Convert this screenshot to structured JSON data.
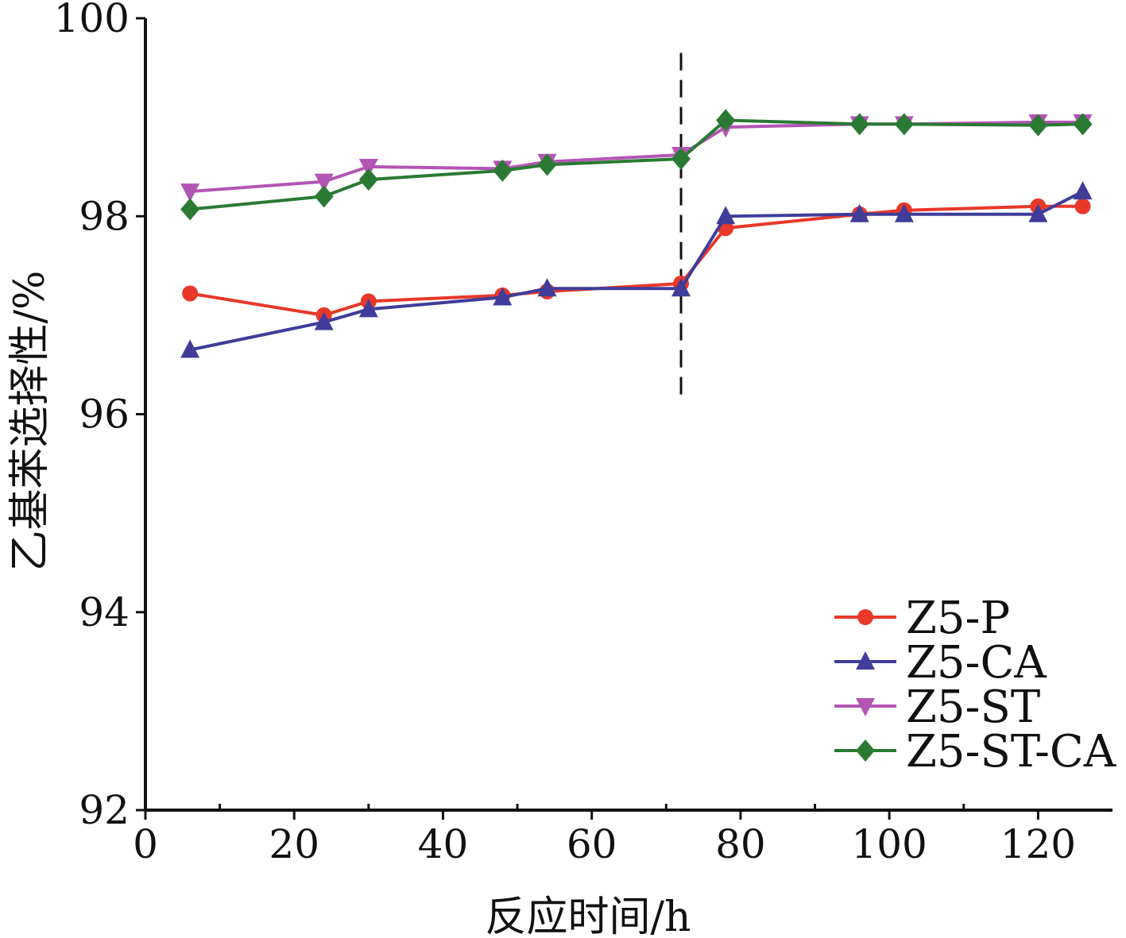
{
  "chart_data": {
    "type": "line",
    "title": "",
    "xlabel": "反应时间/h",
    "ylabel": "乙基苯选择性/%",
    "xlim": [
      0,
      130
    ],
    "ylim": [
      92,
      100
    ],
    "xticks": [
      0,
      20,
      40,
      60,
      80,
      100,
      120
    ],
    "yticks": [
      92,
      94,
      96,
      98,
      100
    ],
    "x_tick_labels": [
      "0",
      "20",
      "40",
      "60",
      "80",
      "100",
      "120"
    ],
    "y_tick_labels": [
      "92",
      "94",
      "96",
      "98",
      "100"
    ],
    "grid": false,
    "legend_position": "bottom-right",
    "reference_line": {
      "x": 72,
      "y_range": [
        96.15,
        99.65
      ],
      "style": "dashed"
    },
    "series": [
      {
        "name": "Z5-P",
        "color": "#e8382a",
        "marker": "circle",
        "x": [
          6,
          24,
          30,
          48,
          54,
          72,
          78,
          96,
          102,
          120,
          126
        ],
        "y": [
          97.22,
          97.0,
          97.14,
          97.2,
          97.24,
          97.32,
          97.88,
          98.02,
          98.06,
          98.1,
          98.1
        ]
      },
      {
        "name": "Z5-CA",
        "color": "#3f3d99",
        "marker": "triangle-up",
        "x": [
          6,
          24,
          30,
          48,
          54,
          72,
          78,
          96,
          102,
          120,
          126
        ],
        "y": [
          96.65,
          96.93,
          97.06,
          97.18,
          97.27,
          97.27,
          98.0,
          98.02,
          98.02,
          98.02,
          98.25
        ]
      },
      {
        "name": "Z5-ST",
        "color": "#b355b5",
        "marker": "triangle-down",
        "x": [
          6,
          24,
          30,
          48,
          54,
          72,
          78,
          96,
          102,
          120,
          126
        ],
        "y": [
          98.25,
          98.35,
          98.5,
          98.48,
          98.55,
          98.62,
          98.9,
          98.93,
          98.93,
          98.95,
          98.95
        ]
      },
      {
        "name": "Z5-ST-CA",
        "color": "#2a7a33",
        "marker": "diamond",
        "x": [
          6,
          24,
          30,
          48,
          54,
          72,
          78,
          96,
          102,
          120,
          126
        ],
        "y": [
          98.07,
          98.2,
          98.37,
          98.46,
          98.52,
          98.58,
          98.97,
          98.93,
          98.93,
          98.92,
          98.93
        ]
      }
    ]
  }
}
